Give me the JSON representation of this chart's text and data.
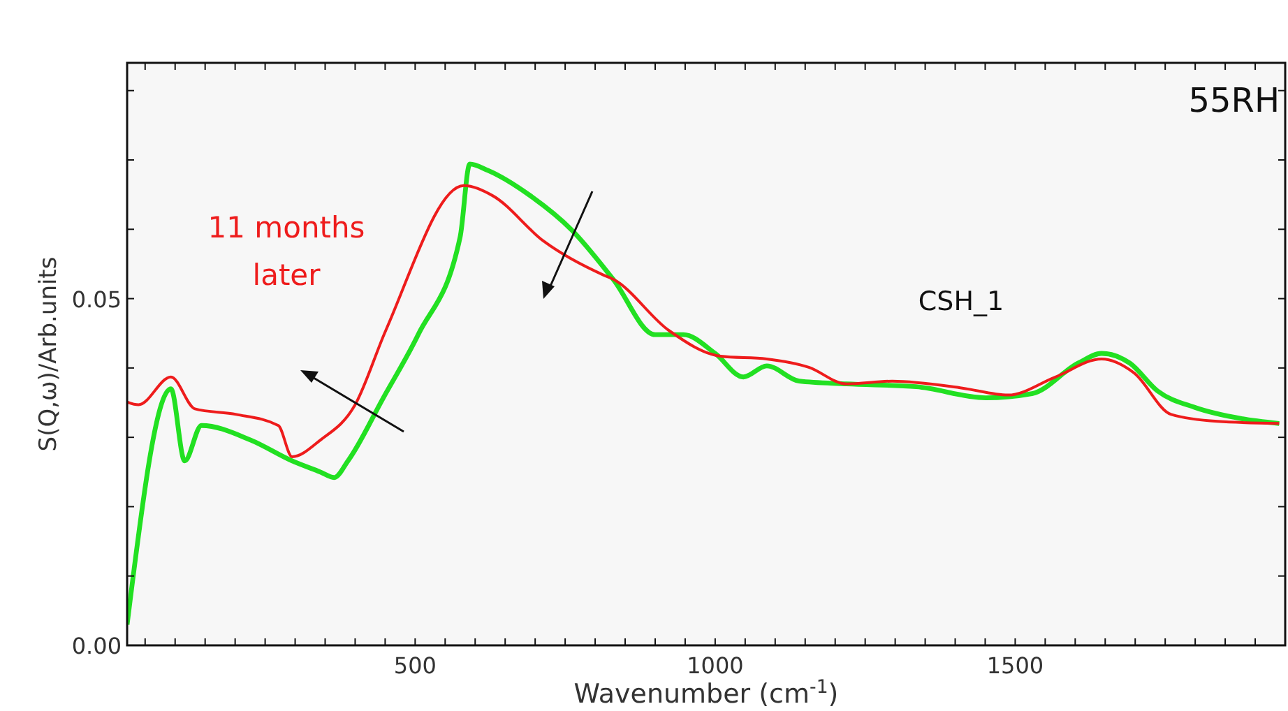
{
  "chart_data": {
    "type": "line",
    "xlabel": "Wavenumber (cm$^{-1}$)",
    "ylabel": "S(Q,ω)/Arb.units",
    "xlim": [
      20,
      1950
    ],
    "ylim": [
      0,
      0.084
    ],
    "xticks": [
      {
        "value": 50,
        "label": null
      },
      {
        "value": 100,
        "label": null
      },
      {
        "value": 150,
        "label": null
      },
      {
        "value": 200,
        "label": null
      },
      {
        "value": 250,
        "label": null
      },
      {
        "value": 300,
        "label": null
      },
      {
        "value": 350,
        "label": null
      },
      {
        "value": 400,
        "label": null
      },
      {
        "value": 450,
        "label": null
      },
      500,
      {
        "value": 550,
        "label": null
      },
      {
        "value": 600,
        "label": null
      },
      {
        "value": 650,
        "label": null
      },
      {
        "value": 700,
        "label": null
      },
      {
        "value": 750,
        "label": null
      },
      {
        "value": 800,
        "label": null
      },
      {
        "value": 850,
        "label": null
      },
      {
        "value": 900,
        "label": null
      },
      {
        "value": 950,
        "label": null
      },
      1000,
      {
        "value": 1050,
        "label": null
      },
      {
        "value": 1100,
        "label": null
      },
      {
        "value": 1150,
        "label": null
      },
      {
        "value": 1200,
        "label": null
      },
      {
        "value": 1250,
        "label": null
      },
      {
        "value": 1300,
        "label": null
      },
      {
        "value": 1350,
        "label": null
      },
      {
        "value": 1400,
        "label": null
      },
      {
        "value": 1450,
        "label": null
      },
      1500,
      {
        "value": 1550,
        "label": null
      },
      {
        "value": 1600,
        "label": null
      },
      {
        "value": 1650,
        "label": null
      },
      {
        "value": 1700,
        "label": null
      },
      {
        "value": 1750,
        "label": null
      },
      {
        "value": 1800,
        "label": null
      },
      {
        "value": 1850,
        "label": null
      },
      {
        "value": 1900,
        "label": null
      }
    ],
    "yticks": [
      {
        "value": 0,
        "label": "0.00"
      },
      {
        "value": 0.01,
        "label": null
      },
      {
        "value": 0.02,
        "label": null
      },
      {
        "value": 0.03,
        "label": null
      },
      {
        "value": 0.04,
        "label": null
      },
      {
        "value": 0.05,
        "label": "0.05"
      },
      {
        "value": 0.06,
        "label": null
      },
      {
        "value": 0.07,
        "label": null
      },
      {
        "value": 0.08,
        "label": null
      }
    ],
    "grid": false,
    "marker": "none",
    "line_style": "solid",
    "annotations": [
      "55RH",
      "CSH_1"
    ],
    "series": [
      {
        "color": "#22e022",
        "x": [
          20,
          93,
          116,
          144,
          226,
          295,
          342,
          365,
          388,
          447,
          505,
          575,
          591,
          621,
          691,
          761,
          830,
          900,
          947,
          1000,
          1047,
          1086,
          1140,
          1219,
          1335,
          1451,
          1528,
          1605,
          1644,
          1691,
          1737,
          1800,
          1877,
          1940
        ],
        "values": [
          0.003,
          0.037,
          0.0266,
          0.0317,
          0.0296,
          0.0266,
          0.025,
          0.0242,
          0.0266,
          0.0357,
          0.0448,
          0.0589,
          0.0694,
          0.0685,
          0.0649,
          0.0599,
          0.0528,
          0.0448,
          0.0448,
          0.0421,
          0.0387,
          0.0403,
          0.0381,
          0.0377,
          0.0373,
          0.0357,
          0.0363,
          0.0407,
          0.0421,
          0.0407,
          0.0367,
          0.0343,
          0.0327,
          0.032
        ]
      },
      {
        "name": "11 months later",
        "color": "#ee1c1c",
        "x": [
          20,
          39,
          93,
          133,
          202,
          272,
          295,
          342,
          400,
          451,
          581,
          628,
          714,
          814,
          830,
          923,
          1009,
          1086,
          1156,
          1219,
          1295,
          1412,
          1488,
          1567,
          1644,
          1698,
          1760,
          1837,
          1940
        ],
        "values": [
          0.0351,
          0.0347,
          0.0387,
          0.0341,
          0.0333,
          0.0317,
          0.0272,
          0.0296,
          0.0347,
          0.0454,
          0.0663,
          0.0649,
          0.0583,
          0.0534,
          0.0528,
          0.0454,
          0.0417,
          0.0413,
          0.0401,
          0.0377,
          0.0381,
          0.0371,
          0.0361,
          0.0387,
          0.0413,
          0.0393,
          0.0333,
          0.0323,
          0.032
        ]
      }
    ]
  }
}
